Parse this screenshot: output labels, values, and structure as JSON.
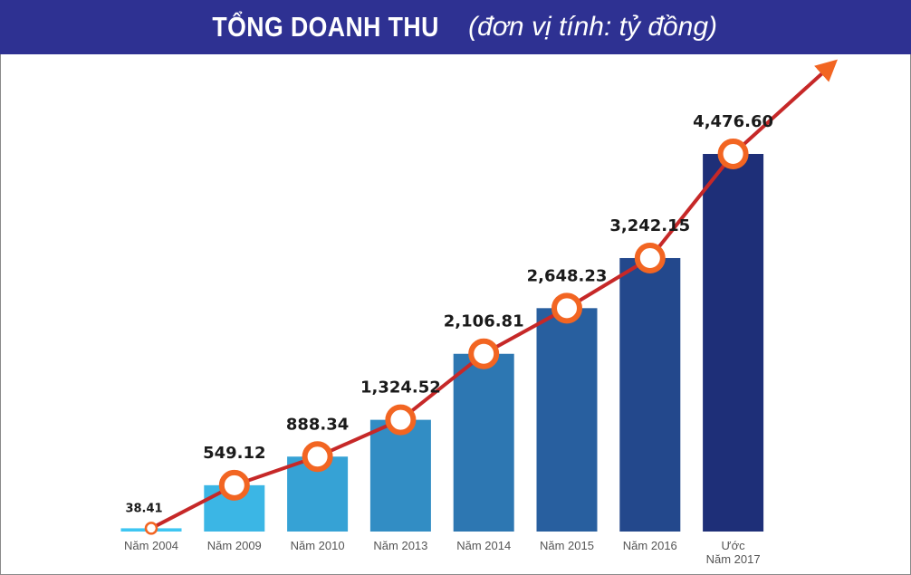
{
  "header": {
    "title": "TỔNG DOANH THU",
    "unit": "(đơn vị tính: tỷ đồng)"
  },
  "chart_data": {
    "type": "bar",
    "title": "TỔNG DOANH THU",
    "subtitle": "(đơn vị tính: tỷ đồng)",
    "categories": [
      "Năm 2004",
      "Năm 2009",
      "Năm 2010",
      "Năm 2013",
      "Năm 2014",
      "Năm 2015",
      "Năm 2016",
      "Ước\nNăm 2017"
    ],
    "values": [
      38.41,
      549.12,
      888.34,
      1324.52,
      2106.81,
      2648.23,
      3242.15,
      4476.6
    ],
    "value_labels": [
      "38.41",
      "549.12",
      "888.34",
      "1,324.52",
      "2,106.81",
      "2,648.23",
      "3,242.15",
      "4,476.60"
    ],
    "overlay": "line-with-markers-and-arrow",
    "xlabel": "",
    "ylabel": "",
    "ylim": [
      0,
      4700
    ],
    "grid": false,
    "legend": "none",
    "colors": {
      "bar_light": "#3ec6f2",
      "bar_dark": "#1e2f78",
      "line": "#c62828",
      "marker": "#f26522",
      "arrow": "#f26522",
      "title_bg": "#2e3192"
    }
  }
}
